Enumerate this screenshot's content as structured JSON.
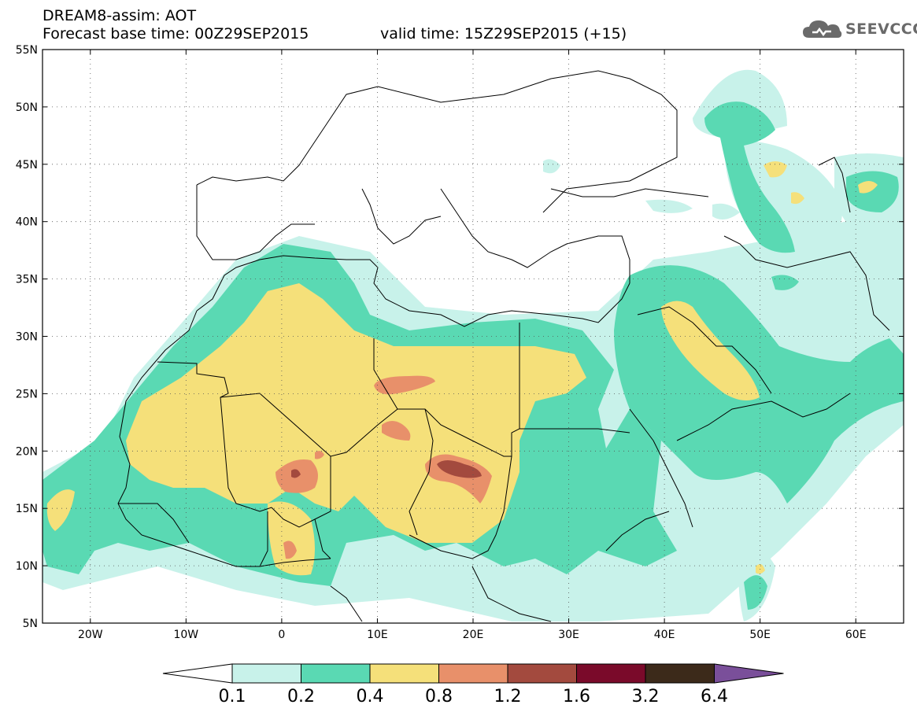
{
  "title": {
    "line1": "DREAM8-assim: AOT",
    "base_time": "Forecast base time: 00Z29SEP2015",
    "valid_time": "valid time: 15Z29SEP2015 (+15)"
  },
  "logo": {
    "text": "SEEVCCC",
    "icon": "cloud-icon"
  },
  "map": {
    "lon_range": [
      -25,
      65
    ],
    "lat_range": [
      5,
      55
    ],
    "lat_ticks": [
      "5N",
      "10N",
      "15N",
      "20N",
      "25N",
      "30N",
      "35N",
      "40N",
      "45N",
      "50N",
      "55N"
    ],
    "lon_ticks": [
      "20W",
      "10W",
      "0",
      "10E",
      "20E",
      "30E",
      "40E",
      "50E",
      "60E"
    ],
    "gridlines": "dotted"
  },
  "colorbar": {
    "labels": [
      "0.1",
      "0.2",
      "0.4",
      "0.8",
      "1.2",
      "1.6",
      "3.2",
      "6.4"
    ],
    "colors": [
      "#ffffff",
      "#c8f2ea",
      "#5ad9b3",
      "#f5e07a",
      "#e8906a",
      "#a34a3e",
      "#7a0a2a",
      "#3c2a1a",
      "#7a4f9a"
    ]
  },
  "colors": {
    "c1": "#c8f2ea",
    "c2": "#5ad9b3",
    "c3": "#f5e07a",
    "c4": "#e8906a",
    "c5": "#a34a3e"
  }
}
